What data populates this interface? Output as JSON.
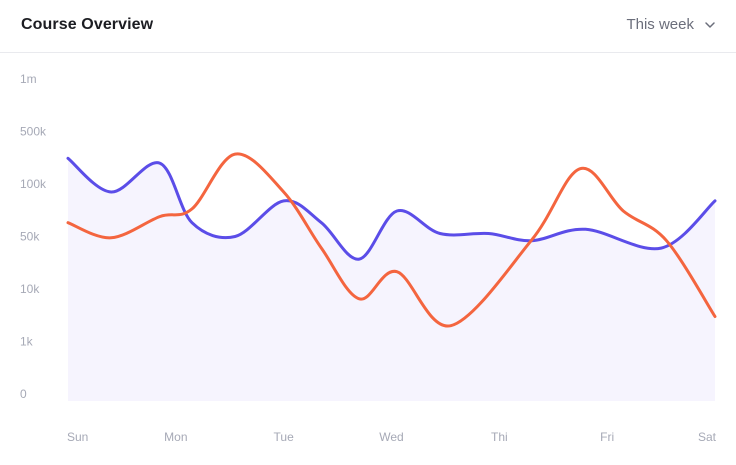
{
  "header": {
    "title": "Course Overview",
    "period_label": "This week",
    "period_icon": "chevron-down-icon"
  },
  "chart_data": {
    "type": "line",
    "x": [
      "Sun",
      "Mon",
      "Tue",
      "Wed",
      "Thi",
      "Fri",
      "Sat"
    ],
    "y_ticks": [
      "1m",
      "500k",
      "100k",
      "50k",
      "10k",
      "1k",
      "0"
    ],
    "series": [
      {
        "color": "#5b4de8",
        "fill": "#f6f4fe",
        "points": [
          [
            0,
            220000
          ],
          [
            0.4,
            90000
          ],
          [
            0.85,
            190000
          ],
          [
            1.15,
            60000
          ],
          [
            1.55,
            50000
          ],
          [
            2.0,
            80000
          ],
          [
            2.35,
            60000
          ],
          [
            2.7,
            25000
          ],
          [
            3.05,
            70000
          ],
          [
            3.45,
            52000
          ],
          [
            3.9,
            52000
          ],
          [
            4.3,
            44000
          ],
          [
            4.8,
            55000
          ],
          [
            5.5,
            35000
          ],
          [
            6.0,
            80000
          ]
        ]
      },
      {
        "color": "#f4653f",
        "fill": "none",
        "points": [
          [
            0,
            60000
          ],
          [
            0.4,
            48000
          ],
          [
            0.85,
            65000
          ],
          [
            1.15,
            72000
          ],
          [
            1.55,
            250000
          ],
          [
            2.0,
            90000
          ],
          [
            2.35,
            35000
          ],
          [
            2.7,
            6500
          ],
          [
            3.05,
            17000
          ],
          [
            3.55,
            2000
          ],
          [
            4.3,
            45000
          ],
          [
            4.75,
            160000
          ],
          [
            5.15,
            70000
          ],
          [
            5.55,
            44000
          ],
          [
            6.0,
            3000
          ]
        ]
      }
    ],
    "grid": false,
    "legend": "none"
  }
}
